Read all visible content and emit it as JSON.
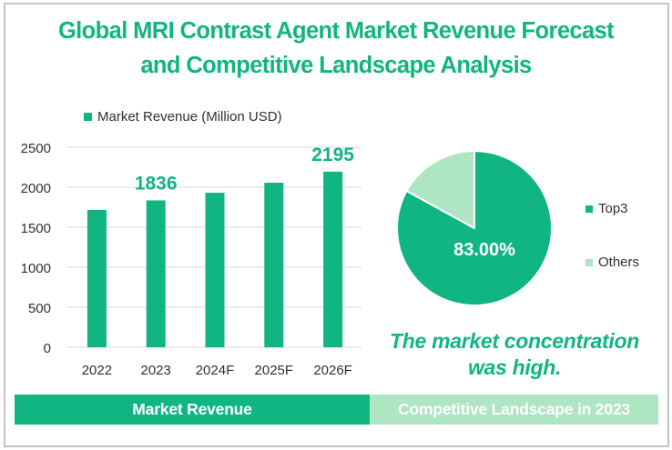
{
  "title": {
    "line1": "Global MRI Contrast Agent Market Revenue Forecast",
    "line2": "and Competitive Landscape Analysis"
  },
  "colors": {
    "primary": "#10b582",
    "secondary": "#aee5c3",
    "grid": "#d9d9d9",
    "axis_text": "#303030"
  },
  "chart_data": [
    {
      "type": "bar",
      "title": "",
      "legend": [
        "Market Revenue (Million USD)"
      ],
      "legend_position": "top",
      "categories": [
        "2022",
        "2023",
        "2024F",
        "2025F",
        "2026F"
      ],
      "series": [
        {
          "name": "Market Revenue (Million USD)",
          "values": [
            1716,
            1836,
            1932,
            2057,
            2195
          ]
        }
      ],
      "data_labels": [
        {
          "category": "2023",
          "text": "1836"
        },
        {
          "category": "2026F",
          "text": "2195"
        }
      ],
      "yticks": [
        0,
        500,
        1000,
        1500,
        2000,
        2500
      ],
      "ylim": [
        0,
        2500
      ],
      "xlabel": "",
      "ylabel": "",
      "grid": true
    },
    {
      "type": "pie",
      "title": "",
      "slices": [
        {
          "label": "Top3",
          "value": 83.0
        },
        {
          "label": "Others",
          "value": 17.0
        }
      ],
      "data_labels": [
        {
          "slice": "Top3",
          "text": "83.00%"
        }
      ],
      "legend": [
        "Top3",
        "Others"
      ],
      "legend_position": "right"
    }
  ],
  "conclusion": {
    "line1": "The market concentration",
    "line2": "was high."
  },
  "banners": {
    "left": "Market Revenue",
    "right": "Competitive Landscape in 2023"
  }
}
